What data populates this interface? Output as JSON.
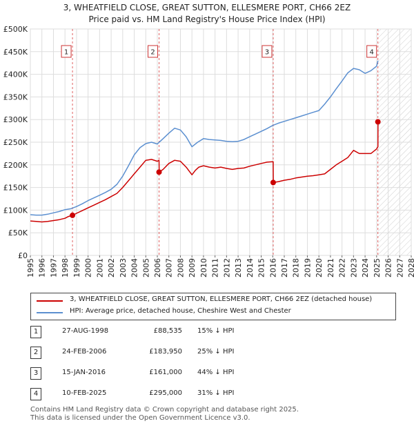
{
  "header": {
    "title_line1": "3, WHEATFIELD CLOSE, GREAT SUTTON, ELLESMERE PORT, CH66 2EZ",
    "title_line2": "Price paid vs. HM Land Registry's House Price Index (HPI)"
  },
  "colors": {
    "price_line": "#cc0000",
    "hpi_line": "#5b8fd0",
    "marker_line": "#e06060",
    "future_hatch": "#cccccc",
    "grid": "#dddddd"
  },
  "chart_data": {
    "type": "line",
    "ylim": [
      0,
      500000
    ],
    "xlim": [
      1995,
      2028
    ],
    "y_ticks": [
      {
        "value": 0,
        "label": "£0"
      },
      {
        "value": 50000,
        "label": "£50K"
      },
      {
        "value": 100000,
        "label": "£100K"
      },
      {
        "value": 150000,
        "label": "£150K"
      },
      {
        "value": 200000,
        "label": "£200K"
      },
      {
        "value": 250000,
        "label": "£250K"
      },
      {
        "value": 300000,
        "label": "£300K"
      },
      {
        "value": 350000,
        "label": "£350K"
      },
      {
        "value": 400000,
        "label": "£400K"
      },
      {
        "value": 450000,
        "label": "£450K"
      },
      {
        "value": 500000,
        "label": "£500K"
      }
    ],
    "x_ticks": [
      "1995",
      "1996",
      "1997",
      "1998",
      "1999",
      "2000",
      "2001",
      "2002",
      "2003",
      "2004",
      "2005",
      "2006",
      "2007",
      "2008",
      "2009",
      "2010",
      "2011",
      "2012",
      "2013",
      "2014",
      "2015",
      "2016",
      "2017",
      "2018",
      "2019",
      "2020",
      "2021",
      "2022",
      "2023",
      "2024",
      "2025",
      "2026",
      "2027",
      "2028"
    ],
    "future_from": 2025.12,
    "series": [
      {
        "name": "3, WHEATFIELD CLOSE, GREAT SUTTON, ELLESMERE PORT, CH66 2EZ (detached house)",
        "x": [
          1995.0,
          1995.5,
          1996.0,
          1996.5,
          1997.0,
          1997.5,
          1998.0,
          1998.3,
          1998.65,
          1998.66,
          1999.0,
          1999.5,
          2000.0,
          2000.5,
          2001.0,
          2001.5,
          2002.0,
          2002.5,
          2003.0,
          2003.5,
          2004.0,
          2004.5,
          2005.0,
          2005.5,
          2006.0,
          2006.15,
          2006.16,
          2006.5,
          2007.0,
          2007.5,
          2008.0,
          2008.5,
          2009.0,
          2009.3,
          2009.6,
          2010.0,
          2010.5,
          2011.0,
          2011.5,
          2012.0,
          2012.5,
          2013.0,
          2013.5,
          2014.0,
          2014.5,
          2015.0,
          2015.5,
          2016.0,
          2016.04,
          2016.05,
          2016.5,
          2017.0,
          2017.5,
          2018.0,
          2018.5,
          2019.0,
          2019.5,
          2020.0,
          2020.5,
          2021.0,
          2021.5,
          2022.0,
          2022.5,
          2023.0,
          2023.5,
          2024.0,
          2024.5,
          2025.0,
          2025.11,
          2025.12
        ],
        "values": [
          76000,
          75000,
          74000,
          75000,
          77000,
          79000,
          82000,
          86000,
          88535,
          88535,
          93000,
          99000,
          105000,
          111000,
          117000,
          123000,
          130000,
          137000,
          150000,
          165000,
          180000,
          195000,
          210000,
          212000,
          208000,
          210000,
          183950,
          190000,
          203000,
          210000,
          208000,
          195000,
          178000,
          188000,
          195000,
          198000,
          195000,
          193000,
          195000,
          192000,
          190000,
          192000,
          193000,
          197000,
          200000,
          203000,
          206000,
          207000,
          207000,
          161000,
          163000,
          166000,
          168000,
          171000,
          173000,
          175000,
          176000,
          178000,
          180000,
          190000,
          200000,
          208000,
          216000,
          232000,
          225000,
          225000,
          225000,
          235000,
          240000,
          295000
        ]
      },
      {
        "name": "HPI: Average price, detached house, Cheshire West and Chester",
        "x": [
          1995.0,
          1995.5,
          1996.0,
          1996.5,
          1997.0,
          1997.5,
          1998.0,
          1998.5,
          1999.0,
          1999.5,
          2000.0,
          2000.5,
          2001.0,
          2001.5,
          2002.0,
          2002.5,
          2003.0,
          2003.5,
          2004.0,
          2004.5,
          2005.0,
          2005.5,
          2006.0,
          2006.5,
          2007.0,
          2007.5,
          2008.0,
          2008.5,
          2009.0,
          2009.5,
          2010.0,
          2010.5,
          2011.0,
          2011.5,
          2012.0,
          2012.5,
          2013.0,
          2013.5,
          2014.0,
          2014.5,
          2015.0,
          2015.5,
          2016.0,
          2016.5,
          2017.0,
          2017.5,
          2018.0,
          2018.5,
          2019.0,
          2019.5,
          2020.0,
          2020.5,
          2021.0,
          2021.5,
          2022.0,
          2022.5,
          2023.0,
          2023.5,
          2024.0,
          2024.5,
          2025.0,
          2025.12
        ],
        "values": [
          90000,
          89000,
          89000,
          91000,
          94000,
          97000,
          101000,
          103000,
          108000,
          114000,
          121000,
          127000,
          133000,
          139000,
          146000,
          157000,
          175000,
          198000,
          222000,
          238000,
          247000,
          250000,
          246000,
          258000,
          270000,
          281000,
          277000,
          262000,
          240000,
          250000,
          258000,
          256000,
          255000,
          254000,
          252000,
          251000,
          252000,
          256000,
          262000,
          268000,
          274000,
          280000,
          287000,
          292000,
          296000,
          300000,
          304000,
          308000,
          312000,
          316000,
          320000,
          334000,
          350000,
          368000,
          385000,
          403000,
          413000,
          410000,
          402000,
          408000,
          418000,
          430000
        ]
      }
    ],
    "sales": [
      {
        "id": "1",
        "x": 1998.65,
        "value": 88535
      },
      {
        "id": "2",
        "x": 2006.15,
        "value": 183950
      },
      {
        "id": "3",
        "x": 2016.04,
        "value": 161000
      },
      {
        "id": "4",
        "x": 2025.11,
        "value": 295000
      }
    ]
  },
  "legend": {
    "price_label": "3, WHEATFIELD CLOSE, GREAT SUTTON, ELLESMERE PORT, CH66 2EZ (detached house)",
    "hpi_label": "HPI: Average price, detached house, Cheshire West and Chester"
  },
  "transactions": [
    {
      "num": "1",
      "date": "27-AUG-1998",
      "price": "£88,535",
      "hpi": "15% ↓ HPI"
    },
    {
      "num": "2",
      "date": "24-FEB-2006",
      "price": "£183,950",
      "hpi": "25% ↓ HPI"
    },
    {
      "num": "3",
      "date": "15-JAN-2016",
      "price": "£161,000",
      "hpi": "44% ↓ HPI"
    },
    {
      "num": "4",
      "date": "10-FEB-2025",
      "price": "£295,000",
      "hpi": "31% ↓ HPI"
    }
  ],
  "footer": {
    "line1": "Contains HM Land Registry data © Crown copyright and database right 2025.",
    "line2": "This data is licensed under the Open Government Licence v3.0."
  }
}
